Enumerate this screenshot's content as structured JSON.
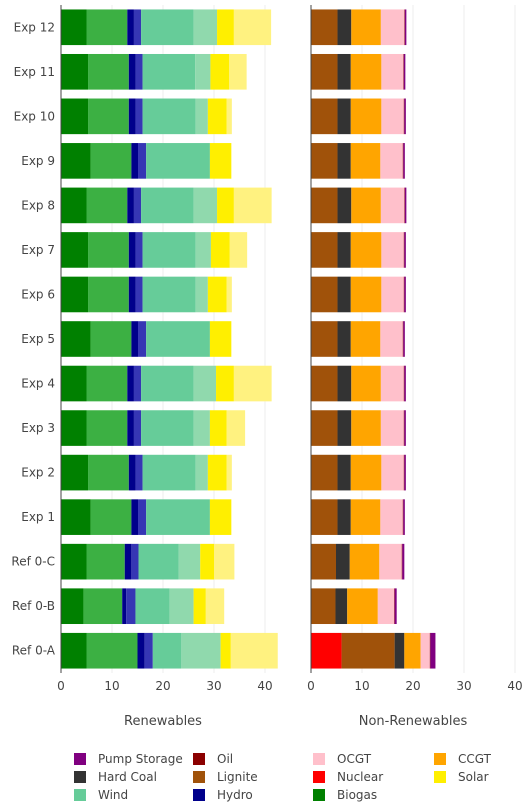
{
  "chart_data": {
    "type": "bar",
    "orientation": "horizontal",
    "stacked": true,
    "categories": [
      "Exp 12",
      "Exp 11",
      "Exp 10",
      "Exp 9",
      "Exp 8",
      "Exp 7",
      "Exp 6",
      "Exp 5",
      "Exp 4",
      "Exp 3",
      "Exp 2",
      "Exp 1",
      "Ref 0-C",
      "Ref 0-B",
      "Ref 0-A"
    ],
    "panels": [
      {
        "name": "Renewables",
        "xlim": [
          0,
          40
        ],
        "xticks": [
          0,
          10,
          20,
          30,
          40
        ],
        "stack_order": [
          "Biogas",
          "Hydro",
          "Wind",
          "Solar"
        ],
        "series": [
          {
            "name": "Biogas",
            "color": "#008000",
            "values": [
              5.0,
              5.3,
              5.3,
              5.8,
              5.0,
              5.3,
              5.3,
              5.8,
              5.0,
              5.0,
              5.3,
              5.8,
              5.0,
              4.4,
              5.0
            ]
          },
          {
            "name": "Biogas",
            "color": "#3cb043",
            "values": [
              8.0,
              8.0,
              8.0,
              8.0,
              8.0,
              8.0,
              8.0,
              8.0,
              8.0,
              8.0,
              8.0,
              8.0,
              7.5,
              7.6,
              10.0
            ]
          },
          {
            "name": "Hydro",
            "color": "#00008b",
            "values": [
              1.3,
              1.3,
              1.3,
              1.3,
              1.3,
              1.3,
              1.3,
              1.3,
              1.3,
              1.3,
              1.3,
              1.3,
              1.3,
              0.8,
              1.4
            ]
          },
          {
            "name": "Hydro",
            "color": "#3636b4",
            "values": [
              1.4,
              1.4,
              1.4,
              1.6,
              1.4,
              1.4,
              1.4,
              1.6,
              1.4,
              1.4,
              1.4,
              1.6,
              1.4,
              1.8,
              1.6
            ]
          },
          {
            "name": "Wind",
            "color": "#66cc99",
            "values": [
              10.3,
              10.3,
              10.4,
              12.5,
              10.3,
              10.4,
              10.4,
              12.5,
              10.3,
              10.3,
              10.4,
              12.5,
              7.9,
              6.7,
              5.6
            ]
          },
          {
            "name": "Wind",
            "color": "#90d9ad",
            "values": [
              4.6,
              3.0,
              2.4,
              0,
              4.6,
              3.0,
              2.4,
              0,
              4.4,
              3.2,
              2.4,
              0,
              4.2,
              4.7,
              7.7
            ]
          },
          {
            "name": "Solar",
            "color": "#ffef00",
            "values": [
              3.3,
              3.7,
              3.7,
              4.2,
              3.3,
              3.7,
              3.7,
              4.2,
              3.5,
              3.3,
              3.7,
              4.2,
              2.7,
              2.4,
              2.0
            ]
          },
          {
            "name": "Solar",
            "color": "#fff280",
            "values": [
              7.3,
              3.4,
              1.0,
              0,
              7.4,
              3.4,
              1.0,
              0,
              7.4,
              3.6,
              1.0,
              0,
              4.0,
              3.6,
              9.2
            ]
          }
        ]
      },
      {
        "name": "Non-Renewables",
        "xlim": [
          0,
          40
        ],
        "xticks": [
          0,
          10,
          20,
          30,
          40
        ],
        "stack_order": [
          "Nuclear",
          "Lignite",
          "Hard Coal",
          "CCGT",
          "OCGT",
          "Oil",
          "Pump Storage"
        ],
        "series": [
          {
            "name": "Nuclear",
            "color": "#ff0000",
            "values": [
              0,
              0,
              0,
              0,
              0,
              0,
              0,
              0,
              0,
              0,
              0,
              0,
              0,
              0,
              6.0
            ]
          },
          {
            "name": "Lignite",
            "color": "#a0520a",
            "values": [
              5.2,
              5.2,
              5.2,
              5.2,
              5.2,
              5.2,
              5.2,
              5.2,
              5.2,
              5.2,
              5.2,
              5.2,
              4.9,
              4.8,
              10.4
            ]
          },
          {
            "name": "Hard Coal",
            "color": "#333333",
            "values": [
              2.7,
              2.6,
              2.6,
              2.6,
              2.7,
              2.6,
              2.6,
              2.6,
              2.7,
              2.7,
              2.6,
              2.6,
              2.7,
              2.3,
              1.9
            ]
          },
          {
            "name": "CCGT",
            "color": "#ffa500",
            "values": [
              5.8,
              6.0,
              6.0,
              5.8,
              5.8,
              6.0,
              6.0,
              5.8,
              5.8,
              5.8,
              6.0,
              5.8,
              5.8,
              6.0,
              3.2
            ]
          },
          {
            "name": "OCGT",
            "color": "#ffc0cb",
            "values": [
              4.6,
              4.3,
              4.4,
              4.4,
              4.6,
              4.4,
              4.4,
              4.4,
              4.5,
              4.5,
              4.4,
              4.4,
              4.4,
              3.2,
              1.8
            ]
          },
          {
            "name": "Oil",
            "color": "#8b0000",
            "values": [
              0.1,
              0.1,
              0.1,
              0.1,
              0.1,
              0.1,
              0.1,
              0.1,
              0.1,
              0.1,
              0.1,
              0.1,
              0.1,
              0.1,
              0.1
            ]
          },
          {
            "name": "Pump Storage",
            "color": "#800080",
            "values": [
              0.3,
              0.3,
              0.3,
              0.3,
              0.3,
              0.3,
              0.3,
              0.3,
              0.3,
              0.3,
              0.3,
              0.3,
              0.4,
              0.4,
              1.0
            ]
          }
        ]
      }
    ],
    "legend": {
      "placement": "bottom",
      "items": [
        {
          "name": "Pump Storage",
          "color": "#800080"
        },
        {
          "name": "Oil",
          "color": "#8b0000"
        },
        {
          "name": "OCGT",
          "color": "#ffc0cb"
        },
        {
          "name": "CCGT",
          "color": "#ffa500"
        },
        {
          "name": "Hard Coal",
          "color": "#333333"
        },
        {
          "name": "Lignite",
          "color": "#a0520a"
        },
        {
          "name": "Nuclear",
          "color": "#ff0000"
        },
        {
          "name": "Solar",
          "color": "#ffef00"
        },
        {
          "name": "Wind",
          "color": "#66cc99"
        },
        {
          "name": "Hydro",
          "color": "#00008b"
        },
        {
          "name": "Biogas",
          "color": "#008000"
        }
      ]
    },
    "grid": true
  }
}
